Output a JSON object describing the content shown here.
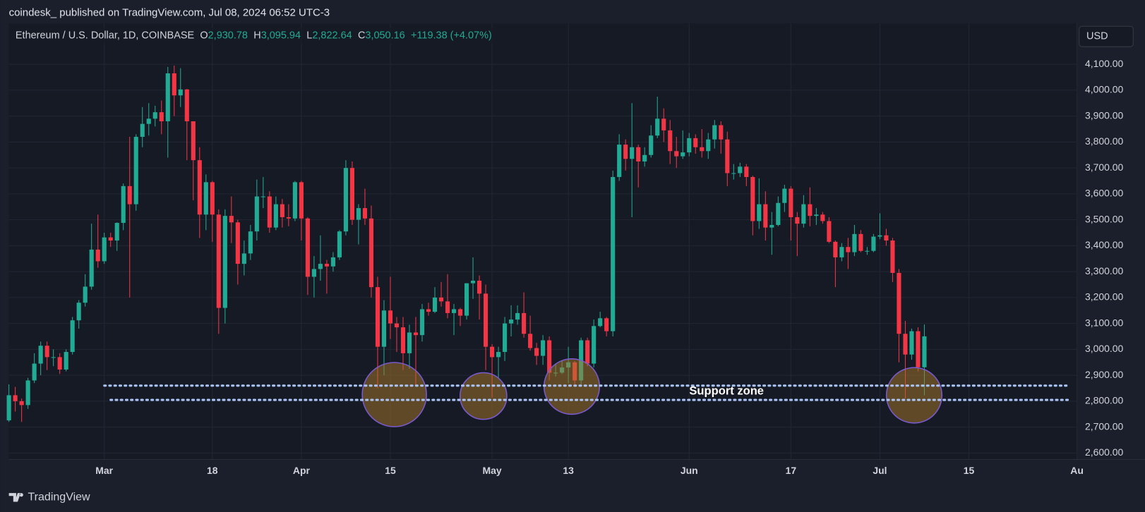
{
  "chart_data": {
    "type": "candlestick",
    "published_by": "coindesk_ published on TradingView.com, Jul 08, 2024 06:52 UTC-3",
    "symbol": "Ethereum / U.S. Dollar, 1D, COINBASE",
    "ohlc_legend": [
      {
        "key": "O",
        "value": "2,930.78"
      },
      {
        "key": "H",
        "value": "3,095.94"
      },
      {
        "key": "L",
        "value": "2,822.64"
      },
      {
        "key": "C",
        "value": "3,050.16"
      }
    ],
    "change": "+119.38 (+4.07%)",
    "currency": "USD",
    "footer": "TradingView",
    "up_color": "#22ab94",
    "down_color": "#f23645",
    "grid": true,
    "x": [
      "2024-02-15",
      "2024-02-16",
      "2024-02-17",
      "2024-02-18",
      "2024-02-19",
      "2024-02-20",
      "2024-02-21",
      "2024-02-22",
      "2024-02-23",
      "2024-02-24",
      "2024-02-25",
      "2024-02-26",
      "2024-02-27",
      "2024-02-28",
      "2024-02-29",
      "2024-03-01",
      "2024-03-02",
      "2024-03-03",
      "2024-03-04",
      "2024-03-05",
      "2024-03-06",
      "2024-03-07",
      "2024-03-08",
      "2024-03-09",
      "2024-03-10",
      "2024-03-11",
      "2024-03-12",
      "2024-03-13",
      "2024-03-14",
      "2024-03-15",
      "2024-03-16",
      "2024-03-17",
      "2024-03-18",
      "2024-03-19",
      "2024-03-20",
      "2024-03-21",
      "2024-03-22",
      "2024-03-23",
      "2024-03-24",
      "2024-03-25",
      "2024-03-26",
      "2024-03-27",
      "2024-03-28",
      "2024-03-29",
      "2024-03-30",
      "2024-03-31",
      "2024-04-01",
      "2024-04-02",
      "2024-04-03",
      "2024-04-04",
      "2024-04-05",
      "2024-04-06",
      "2024-04-07",
      "2024-04-08",
      "2024-04-09",
      "2024-04-10",
      "2024-04-11",
      "2024-04-12",
      "2024-04-13",
      "2024-04-14",
      "2024-04-15",
      "2024-04-16",
      "2024-04-17",
      "2024-04-18",
      "2024-04-19",
      "2024-04-20",
      "2024-04-21",
      "2024-04-22",
      "2024-04-23",
      "2024-04-24",
      "2024-04-25",
      "2024-04-26",
      "2024-04-27",
      "2024-04-28",
      "2024-04-29",
      "2024-04-30",
      "2024-05-01",
      "2024-05-02",
      "2024-05-03",
      "2024-05-04",
      "2024-05-05",
      "2024-05-06",
      "2024-05-07",
      "2024-05-08",
      "2024-05-09",
      "2024-05-10",
      "2024-05-11",
      "2024-05-12",
      "2024-05-13",
      "2024-05-14",
      "2024-05-15",
      "2024-05-16",
      "2024-05-17",
      "2024-05-18",
      "2024-05-19",
      "2024-05-20",
      "2024-05-21",
      "2024-05-22",
      "2024-05-23",
      "2024-05-24",
      "2024-05-25",
      "2024-05-26",
      "2024-05-27",
      "2024-05-28",
      "2024-05-29",
      "2024-05-30",
      "2024-05-31",
      "2024-06-01",
      "2024-06-02",
      "2024-06-03",
      "2024-06-04",
      "2024-06-05",
      "2024-06-06",
      "2024-06-07",
      "2024-06-08",
      "2024-06-09",
      "2024-06-10",
      "2024-06-11",
      "2024-06-12",
      "2024-06-13",
      "2024-06-14",
      "2024-06-15",
      "2024-06-16",
      "2024-06-17",
      "2024-06-18",
      "2024-06-19",
      "2024-06-20",
      "2024-06-21",
      "2024-06-22",
      "2024-06-23",
      "2024-06-24",
      "2024-06-25",
      "2024-06-26",
      "2024-06-27",
      "2024-06-28",
      "2024-06-29",
      "2024-06-30",
      "2024-07-01",
      "2024-07-02",
      "2024-07-03",
      "2024-07-04",
      "2024-07-05",
      "2024-07-06",
      "2024-07-07",
      "2024-07-08"
    ],
    "open": [
      2726,
      2823,
      2800,
      2785,
      2880,
      2945,
      3014,
      2970,
      2970,
      2922,
      2990,
      3112,
      3180,
      3242,
      3385,
      3340,
      3432,
      3420,
      3488,
      3630,
      3560,
      3820,
      3870,
      3890,
      3915,
      3880,
      4065,
      3980,
      4003,
      3880,
      3730,
      3520,
      3645,
      3520,
      3160,
      3515,
      3490,
      3330,
      3370,
      3455,
      3590,
      3590,
      3470,
      3560,
      3510,
      3505,
      3645,
      3505,
      3280,
      3310,
      3330,
      3320,
      3355,
      3455,
      3700,
      3500,
      3545,
      3505,
      3240,
      3010,
      3150,
      3100,
      3085,
      2985,
      3065,
      3055,
      3155,
      3145,
      3200,
      3185,
      3140,
      3155,
      3130,
      3255,
      3265,
      3215,
      3010,
      2970,
      2990,
      3100,
      3115,
      3140,
      3060,
      3005,
      2975,
      3035,
      2910,
      2910,
      2930,
      2950,
      2880,
      3035,
      2945,
      3090,
      3120,
      3070,
      3665,
      3790,
      3735,
      3780,
      3725,
      3750,
      3825,
      3890,
      3845,
      3765,
      3745,
      3760,
      3815,
      3780,
      3765,
      3810,
      3865,
      3810,
      3680,
      3680,
      3705,
      3665,
      3495,
      3560,
      3470,
      3480,
      3565,
      3620,
      3510,
      3485,
      3560,
      3515,
      3520,
      3495,
      3415,
      3355,
      3395,
      3375,
      3445,
      3380,
      3380,
      3435,
      3440,
      3420,
      3295,
      3060,
      2980,
      3070,
      2930.78
    ],
    "high": [
      2865,
      2855,
      2810,
      2890,
      2985,
      3030,
      3030,
      3000,
      2985,
      3000,
      3125,
      3190,
      3290,
      3485,
      3520,
      3450,
      3450,
      3490,
      3640,
      3820,
      3830,
      3935,
      3950,
      3940,
      3960,
      4090,
      4095,
      4085,
      4005,
      3880,
      3780,
      3675,
      3650,
      3540,
      3540,
      3590,
      3500,
      3420,
      3480,
      3655,
      3665,
      3610,
      3590,
      3580,
      3560,
      3650,
      3650,
      3510,
      3360,
      3440,
      3345,
      3375,
      3460,
      3730,
      3725,
      3560,
      3620,
      3555,
      3280,
      3190,
      3280,
      3125,
      3125,
      3095,
      3125,
      3175,
      3180,
      3240,
      3260,
      3290,
      3175,
      3160,
      3255,
      3355,
      3285,
      3250,
      3020,
      3010,
      3125,
      3170,
      3170,
      3220,
      3130,
      3025,
      3055,
      3050,
      2945,
      2955,
      3010,
      2955,
      3045,
      3045,
      3115,
      3145,
      3125,
      3690,
      3830,
      3810,
      3950,
      3790,
      3780,
      3865,
      3975,
      3930,
      3885,
      3820,
      3845,
      3835,
      3830,
      3850,
      3835,
      3885,
      3880,
      3840,
      3715,
      3720,
      3715,
      3670,
      3660,
      3610,
      3530,
      3590,
      3635,
      3630,
      3530,
      3595,
      3625,
      3545,
      3530,
      3510,
      3420,
      3410,
      3430,
      3480,
      3460,
      3395,
      3445,
      3525,
      3465,
      3430,
      3310,
      3110,
      3080,
      3085,
      3095.94
    ],
    "low": [
      2720,
      2760,
      2720,
      2770,
      2870,
      2900,
      2920,
      2935,
      2905,
      2915,
      2980,
      3080,
      3165,
      3230,
      3315,
      3330,
      3395,
      3380,
      3460,
      3200,
      3535,
      3780,
      3825,
      3860,
      3830,
      3740,
      3900,
      3935,
      3730,
      3575,
      3430,
      3460,
      3415,
      3060,
      3100,
      3410,
      3250,
      3285,
      3345,
      3420,
      3545,
      3450,
      3460,
      3470,
      3475,
      3495,
      3420,
      3210,
      3200,
      3265,
      3215,
      3300,
      3345,
      3440,
      3480,
      3405,
      3480,
      3200,
      2850,
      2900,
      3040,
      2990,
      2920,
      2925,
      2860,
      3030,
      3130,
      3140,
      3165,
      3120,
      3055,
      3090,
      3115,
      3195,
      3115,
      2920,
      2815,
      2890,
      2955,
      3050,
      3095,
      3045,
      2995,
      2940,
      2940,
      2880,
      2895,
      2905,
      2870,
      2865,
      2865,
      2935,
      2930,
      3085,
      3050,
      3050,
      3650,
      3690,
      3510,
      3625,
      3705,
      3740,
      3815,
      3800,
      3715,
      3700,
      3735,
      3745,
      3755,
      3740,
      3735,
      3775,
      3755,
      3630,
      3655,
      3665,
      3630,
      3440,
      3465,
      3420,
      3365,
      3475,
      3530,
      3420,
      3360,
      3470,
      3475,
      3480,
      3485,
      3410,
      3240,
      3340,
      3310,
      3360,
      3375,
      3365,
      3375,
      3425,
      3400,
      3260,
      2950,
      2810,
      2960,
      2915,
      2822.64
    ],
    "close": [
      2823,
      2800,
      2785,
      2880,
      2945,
      3014,
      2970,
      2970,
      2922,
      2990,
      3112,
      3180,
      3242,
      3385,
      3340,
      3432,
      3420,
      3488,
      3630,
      3560,
      3820,
      3870,
      3890,
      3915,
      3880,
      4065,
      3980,
      4003,
      3880,
      3730,
      3520,
      3645,
      3520,
      3160,
      3515,
      3490,
      3330,
      3370,
      3455,
      3590,
      3590,
      3470,
      3560,
      3510,
      3505,
      3645,
      3505,
      3280,
      3310,
      3330,
      3320,
      3355,
      3455,
      3700,
      3500,
      3545,
      3505,
      3240,
      3010,
      3150,
      3100,
      3085,
      2985,
      3065,
      3055,
      3155,
      3145,
      3200,
      3185,
      3140,
      3155,
      3130,
      3255,
      3265,
      3215,
      3010,
      2970,
      2990,
      3100,
      3115,
      3140,
      3060,
      3005,
      2975,
      3035,
      2910,
      2910,
      2930,
      2950,
      2880,
      3035,
      2945,
      3090,
      3120,
      3070,
      3665,
      3790,
      3735,
      3780,
      3725,
      3750,
      3825,
      3890,
      3845,
      3765,
      3745,
      3760,
      3815,
      3780,
      3765,
      3810,
      3865,
      3810,
      3680,
      3680,
      3705,
      3665,
      3495,
      3560,
      3470,
      3480,
      3565,
      3620,
      3510,
      3485,
      3560,
      3515,
      3520,
      3495,
      3415,
      3355,
      3395,
      3375,
      3445,
      3380,
      3380,
      3435,
      3440,
      3420,
      3295,
      3060,
      2980,
      3070,
      2930.78,
      3050.16
    ],
    "xlim": [
      "2024-02-15",
      "2024-08-01"
    ],
    "xticks": [
      {
        "value": "2024-03-01",
        "label": "Mar"
      },
      {
        "value": "2024-03-18",
        "label": "18"
      },
      {
        "value": "2024-04-01",
        "label": "Apr"
      },
      {
        "value": "2024-04-15",
        "label": "15"
      },
      {
        "value": "2024-05-01",
        "label": "May"
      },
      {
        "value": "2024-05-13",
        "label": "13"
      },
      {
        "value": "2024-06-01",
        "label": "Jun"
      },
      {
        "value": "2024-06-17",
        "label": "17"
      },
      {
        "value": "2024-07-01",
        "label": "Jul"
      },
      {
        "value": "2024-07-15",
        "label": "15"
      },
      {
        "value": "2024-08-01",
        "label": "Au"
      }
    ],
    "ylim": [
      2575,
      4258
    ],
    "yticks": [
      {
        "value": 2600,
        "label": "2,600.00"
      },
      {
        "value": 2700,
        "label": "2,700.00"
      },
      {
        "value": 2800,
        "label": "2,800.00"
      },
      {
        "value": 2900,
        "label": "2,900.00"
      },
      {
        "value": 3000,
        "label": "3,000.00"
      },
      {
        "value": 3100,
        "label": "3,100.00"
      },
      {
        "value": 3200,
        "label": "3,200.00"
      },
      {
        "value": 3300,
        "label": "3,300.00"
      },
      {
        "value": 3400,
        "label": "3,400.00"
      },
      {
        "value": 3500,
        "label": "3,500.00"
      },
      {
        "value": 3600,
        "label": "3,600.00"
      },
      {
        "value": 3700,
        "label": "3,700.00"
      },
      {
        "value": 3800,
        "label": "3,800.00"
      },
      {
        "value": 3900,
        "label": "3,900.00"
      },
      {
        "value": 4000,
        "label": "4,000.00"
      },
      {
        "value": 4100,
        "label": "4,100.00"
      }
    ],
    "support_lines": [
      {
        "value": 2860,
        "start": "2024-03-01"
      },
      {
        "value": 2805,
        "start": "2024-03-02"
      }
    ],
    "support_label": "Support zone"
  }
}
